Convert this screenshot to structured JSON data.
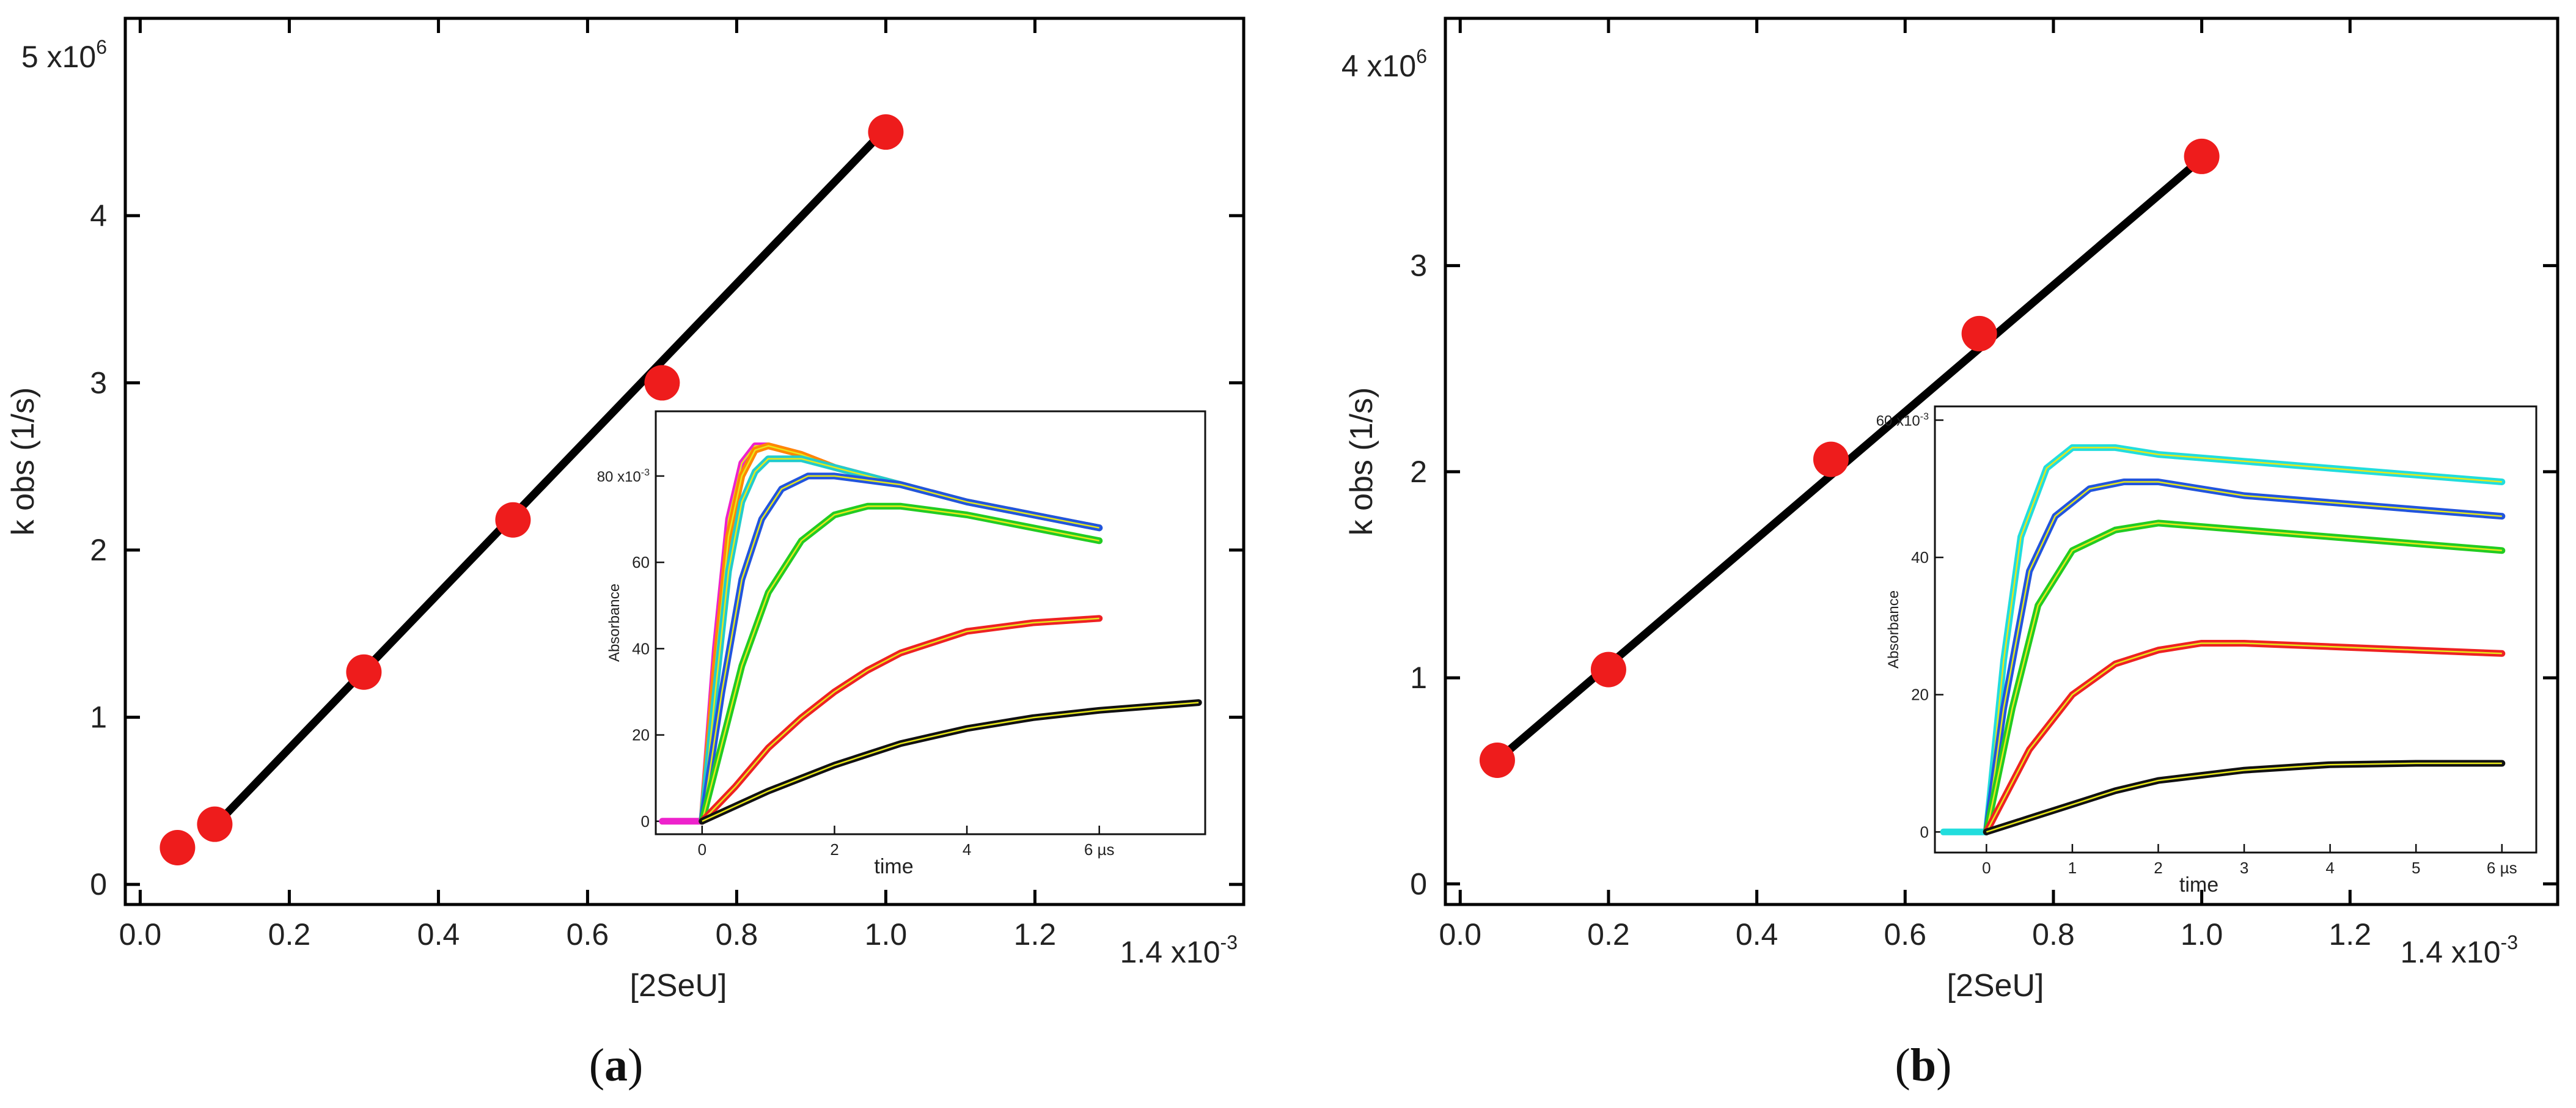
{
  "panels": [
    {
      "label_open": "(",
      "label_letter": "a",
      "label_close": ")",
      "main": {
        "type": "scatter",
        "xlabel": "[2SeU]",
        "ylabel": "k obs (1/s)",
        "xlim": [
          -0.02,
          1.48
        ],
        "ylim": [
          -0.12,
          5.18
        ],
        "x_ticks": [
          "0.0",
          "0.2",
          "0.4",
          "0.6",
          "0.8",
          "1.0",
          "1.2"
        ],
        "x_tick_values": [
          0.0,
          0.2,
          0.4,
          0.6,
          0.8,
          1.0,
          1.2
        ],
        "x_multiplier": "1.4 x10",
        "x_multiplier_exp": "-3",
        "y_ticks": [
          "0",
          "1",
          "2",
          "3",
          "4"
        ],
        "y_tick_values": [
          0,
          1,
          2,
          3,
          4
        ],
        "y_multiplier": "5 x10",
        "y_multiplier_exp": "6",
        "points": [
          {
            "x": 0.05,
            "y": 0.22
          },
          {
            "x": 0.1,
            "y": 0.36
          },
          {
            "x": 0.3,
            "y": 1.27
          },
          {
            "x": 0.5,
            "y": 2.18
          },
          {
            "x": 0.7,
            "y": 3.0
          },
          {
            "x": 1.0,
            "y": 4.5
          }
        ],
        "fit_line": {
          "x": [
            0.1,
            1.0
          ],
          "y": [
            0.35,
            4.52
          ]
        },
        "point_color": "#ee1c1c",
        "line_color": "#000000"
      },
      "inset": {
        "type": "line",
        "xlabel": "time",
        "ylabel": "Absorbance",
        "xlim": [
          -0.7,
          7.6
        ],
        "ylim": [
          -3,
          95
        ],
        "x_ticks": [
          "0",
          "2",
          "4",
          "6 µs"
        ],
        "x_tick_values": [
          0,
          2,
          4,
          6
        ],
        "y_ticks": [
          "0",
          "20",
          "40",
          "60",
          "80 x10"
        ],
        "y_tick_values": [
          0,
          20,
          40,
          60,
          80
        ],
        "y_multiplier_exp": "-3",
        "series": [
          {
            "name": "magenta",
            "color": "#ee22cc",
            "x": [
              -0.6,
              0.0,
              0.2,
              0.4,
              0.6,
              0.8,
              1.0,
              1.5,
              2.0,
              3.0,
              4.0,
              5.0,
              6.0
            ],
            "y": [
              0,
              0,
              40,
              70,
              83,
              87,
              87,
              85,
              82,
              78,
              74,
              71,
              68
            ]
          },
          {
            "name": "orange",
            "color": "#ff8800",
            "x": [
              0.0,
              0.2,
              0.4,
              0.6,
              0.8,
              1.0,
              1.5,
              2.0,
              3.0,
              4.0,
              5.0,
              6.0
            ],
            "y": [
              0,
              36,
              66,
              80,
              86,
              87,
              85,
              82,
              78,
              74,
              71,
              68
            ]
          },
          {
            "name": "cyan",
            "color": "#22cccc",
            "x": [
              0.0,
              0.2,
              0.4,
              0.6,
              0.8,
              1.0,
              1.5,
              2.0,
              3.0,
              4.0,
              5.0,
              6.0
            ],
            "y": [
              0,
              30,
              58,
              74,
              81,
              84,
              84,
              82,
              78,
              74,
              71,
              68
            ]
          },
          {
            "name": "blue",
            "color": "#2255dd",
            "x": [
              0.0,
              0.3,
              0.6,
              0.9,
              1.2,
              1.6,
              2.0,
              3.0,
              4.0,
              5.0,
              6.0
            ],
            "y": [
              0,
              30,
              56,
              70,
              77,
              80,
              80,
              78,
              74,
              71,
              68
            ]
          },
          {
            "name": "green",
            "color": "#22cc22",
            "x": [
              0.0,
              0.3,
              0.6,
              1.0,
              1.5,
              2.0,
              2.5,
              3.0,
              4.0,
              5.0,
              6.0
            ],
            "y": [
              0,
              18,
              36,
              53,
              65,
              71,
              73,
              73,
              71,
              68,
              65
            ]
          },
          {
            "name": "red",
            "color": "#ee2222",
            "x": [
              0.0,
              0.5,
              1.0,
              1.5,
              2.0,
              2.5,
              3.0,
              4.0,
              5.0,
              6.0
            ],
            "y": [
              0,
              8,
              17,
              24,
              30,
              35,
              39,
              44,
              46,
              47
            ]
          },
          {
            "name": "black",
            "color": "#111111",
            "x": [
              0.0,
              1.0,
              2.0,
              3.0,
              4.0,
              5.0,
              6.0,
              7.5
            ],
            "y": [
              0,
              7,
              13,
              18,
              21.5,
              24,
              25.7,
              27.5
            ]
          }
        ],
        "fit_color": "#e8e81a"
      }
    },
    {
      "label_open": "(",
      "label_letter": "b",
      "label_close": ")",
      "main": {
        "type": "scatter",
        "xlabel": "[2SeU]",
        "ylabel": "k obs (1/s)",
        "xlim": [
          -0.02,
          1.48
        ],
        "ylim": [
          -0.1,
          4.2
        ],
        "x_ticks": [
          "0.0",
          "0.2",
          "0.4",
          "0.6",
          "0.8",
          "1.0",
          "1.2"
        ],
        "x_tick_values": [
          0.0,
          0.2,
          0.4,
          0.6,
          0.8,
          1.0,
          1.2
        ],
        "x_multiplier": "1.4 x10",
        "x_multiplier_exp": "-3",
        "y_ticks": [
          "0",
          "1",
          "2",
          "3"
        ],
        "y_tick_values": [
          0,
          1,
          2,
          3
        ],
        "y_multiplier": "4 x10",
        "y_multiplier_exp": "6",
        "points": [
          {
            "x": 0.05,
            "y": 0.6
          },
          {
            "x": 0.2,
            "y": 1.04
          },
          {
            "x": 0.5,
            "y": 2.06
          },
          {
            "x": 0.7,
            "y": 2.67
          },
          {
            "x": 1.0,
            "y": 3.53
          }
        ],
        "fit_line": {
          "x": [
            0.05,
            1.0
          ],
          "y": [
            0.6,
            3.52
          ]
        },
        "point_color": "#ee1c1c",
        "line_color": "#000000"
      },
      "inset": {
        "type": "line",
        "xlabel": "time",
        "ylabel": "Absorbance",
        "xlim": [
          -0.6,
          6.4
        ],
        "ylim": [
          -3,
          62
        ],
        "x_ticks": [
          "0",
          "1",
          "2",
          "3",
          "4",
          "5",
          "6 µs"
        ],
        "x_tick_values": [
          0,
          1,
          2,
          3,
          4,
          5,
          6
        ],
        "y_ticks": [
          "0",
          "20",
          "40",
          "60 x10"
        ],
        "y_tick_values": [
          0,
          20,
          40,
          60
        ],
        "y_multiplier_exp": "-3",
        "series": [
          {
            "name": "cyan",
            "color": "#22dddd",
            "x": [
              -0.5,
              0.0,
              0.2,
              0.4,
              0.7,
              1.0,
              1.5,
              2.0,
              3.0,
              4.0,
              5.0,
              6.0
            ],
            "y": [
              0,
              0,
              25,
              43,
              53,
              56,
              56,
              55,
              54,
              53,
              52,
              51
            ]
          },
          {
            "name": "blue",
            "color": "#2255dd",
            "x": [
              0.0,
              0.2,
              0.5,
              0.8,
              1.2,
              1.6,
              2.0,
              3.0,
              4.0,
              5.0,
              6.0
            ],
            "y": [
              0,
              18,
              38,
              46,
              50,
              51,
              51,
              49,
              48,
              47,
              46
            ]
          },
          {
            "name": "green",
            "color": "#22cc22",
            "x": [
              0.0,
              0.3,
              0.6,
              1.0,
              1.5,
              2.0,
              3.0,
              4.0,
              5.0,
              6.0
            ],
            "y": [
              0,
              18,
              33,
              41,
              44,
              45,
              44,
              43,
              42,
              41
            ]
          },
          {
            "name": "red",
            "color": "#ee2222",
            "x": [
              0.0,
              0.5,
              1.0,
              1.5,
              2.0,
              2.5,
              3.0,
              4.0,
              5.0,
              6.0
            ],
            "y": [
              0,
              12,
              20,
              24.5,
              26.5,
              27.5,
              27.5,
              27,
              26.5,
              26
            ]
          },
          {
            "name": "black",
            "color": "#111111",
            "x": [
              0.0,
              0.5,
              1.0,
              1.5,
              2.0,
              3.0,
              4.0,
              5.0,
              6.0
            ],
            "y": [
              0,
              2,
              4,
              6,
              7.5,
              9,
              9.8,
              10,
              10
            ]
          }
        ],
        "fit_color": "#e8e81a"
      }
    }
  ]
}
